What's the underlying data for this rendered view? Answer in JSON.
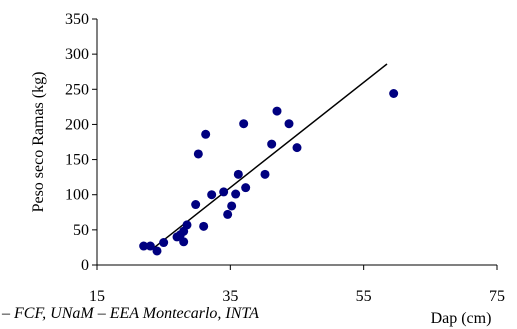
{
  "chart_data": {
    "type": "scatter",
    "title": "",
    "xlabel": "Dap (cm)",
    "ylabel": "Peso seco Ramas (kg)",
    "xlim": [
      15,
      75
    ],
    "ylim": [
      0,
      350
    ],
    "x_ticks": [
      15,
      35,
      55,
      75
    ],
    "y_ticks": [
      0,
      50,
      100,
      150,
      200,
      250,
      300,
      350
    ],
    "grid": false,
    "legend": "none",
    "marker_color": "#000080",
    "points": [
      {
        "x": 22.0,
        "y": 27
      },
      {
        "x": 23.0,
        "y": 27
      },
      {
        "x": 24.0,
        "y": 20
      },
      {
        "x": 25.0,
        "y": 32
      },
      {
        "x": 27.0,
        "y": 40
      },
      {
        "x": 27.5,
        "y": 43
      },
      {
        "x": 28.0,
        "y": 48
      },
      {
        "x": 28.0,
        "y": 33
      },
      {
        "x": 28.5,
        "y": 57
      },
      {
        "x": 29.8,
        "y": 86
      },
      {
        "x": 30.2,
        "y": 158
      },
      {
        "x": 31.0,
        "y": 55
      },
      {
        "x": 31.3,
        "y": 186
      },
      {
        "x": 32.2,
        "y": 100
      },
      {
        "x": 34.0,
        "y": 104
      },
      {
        "x": 34.6,
        "y": 72
      },
      {
        "x": 35.2,
        "y": 84
      },
      {
        "x": 35.8,
        "y": 101
      },
      {
        "x": 36.2,
        "y": 129
      },
      {
        "x": 37.0,
        "y": 201
      },
      {
        "x": 37.3,
        "y": 110
      },
      {
        "x": 40.2,
        "y": 129
      },
      {
        "x": 41.2,
        "y": 172
      },
      {
        "x": 42.0,
        "y": 219
      },
      {
        "x": 43.8,
        "y": 201
      },
      {
        "x": 45.0,
        "y": 167
      },
      {
        "x": 59.5,
        "y": 244
      }
    ],
    "trendline": {
      "x": [
        23.2,
        58.5
      ],
      "y": [
        22,
        286
      ],
      "color": "#000000"
    }
  },
  "footer": {
    "source": "– FCF, UNaM – EEA Montecarlo, INTA"
  }
}
